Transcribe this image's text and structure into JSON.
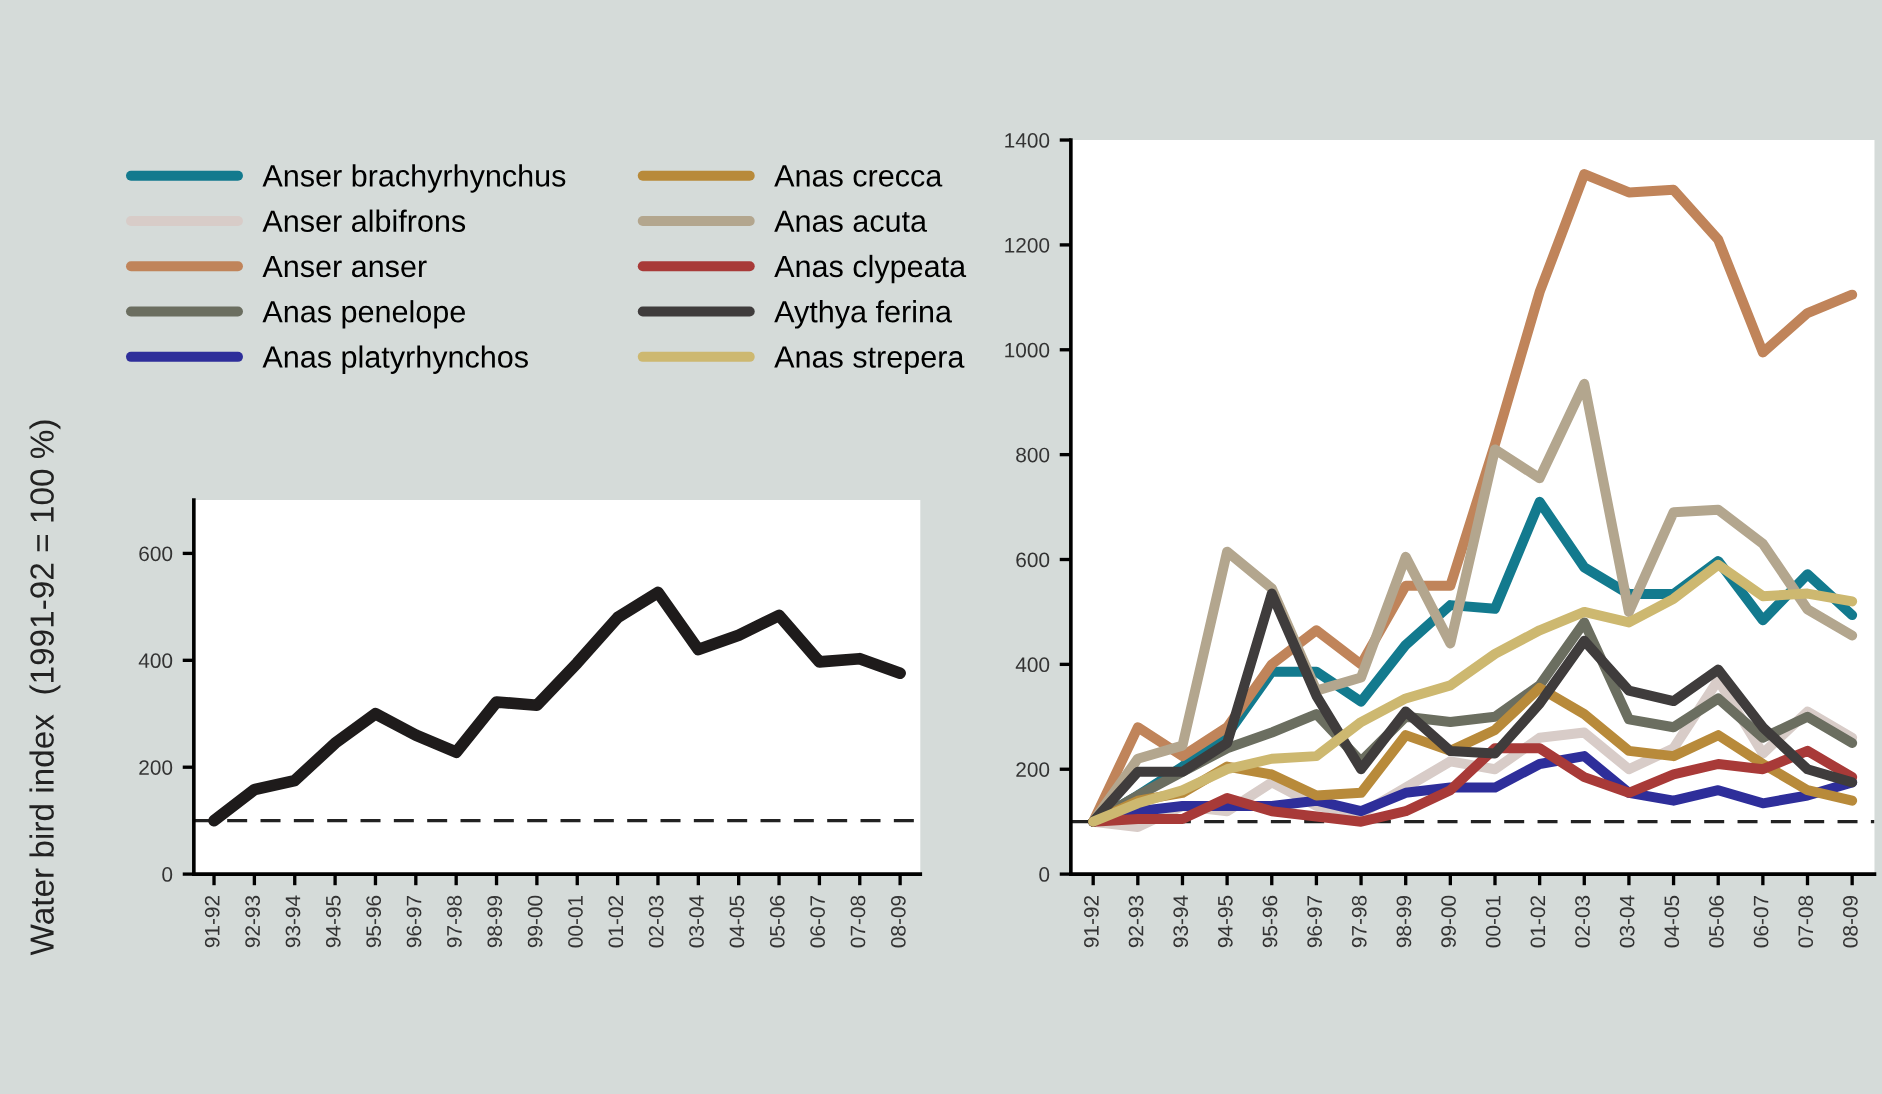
{
  "chart_data": [
    {
      "type": "line",
      "ylabel": "Water bird index  (1991-92 = 100 %)",
      "categories": [
        "91-92",
        "92-93",
        "93-94",
        "94-95",
        "95-96",
        "96-97",
        "97-98",
        "98-99",
        "99-00",
        "00-01",
        "01-02",
        "02-03",
        "03-04",
        "04-05",
        "05-06",
        "06-07",
        "07-08",
        "08-09"
      ],
      "series": [
        {
          "color": "#1e1b1b",
          "values": [
            100,
            158,
            175,
            245,
            300,
            260,
            228,
            322,
            316,
            395,
            480,
            527,
            420,
            447,
            484,
            397,
            403,
            376
          ]
        }
      ],
      "ylim": [
        0,
        700
      ],
      "yticks": [
        0,
        200,
        400,
        600
      ],
      "ref_lines": [
        {
          "axis": "y",
          "value": 100,
          "color": "#222222",
          "line_style": "dashed"
        }
      ],
      "grid": false,
      "legend": false
    },
    {
      "type": "line",
      "categories": [
        "91-92",
        "92-93",
        "93-94",
        "94-95",
        "95-96",
        "96-97",
        "97-98",
        "98-99",
        "99-00",
        "00-01",
        "01-02",
        "02-03",
        "03-04",
        "04-05",
        "05-06",
        "06-07",
        "07-08",
        "08-09"
      ],
      "series": [
        {
          "name": "Anser brachyrhynchus",
          "color": "#137a8e",
          "values": [
            100,
            150,
            205,
            266,
            386,
            386,
            329,
            437,
            513,
            506,
            710,
            585,
            534,
            534,
            597,
            484,
            572,
            494
          ]
        },
        {
          "name": "Anser albifrons",
          "color": "#d8ccc8",
          "values": [
            100,
            90,
            130,
            120,
            175,
            130,
            115,
            165,
            215,
            200,
            260,
            270,
            200,
            240,
            370,
            230,
            310,
            260
          ]
        },
        {
          "name": "Anser anser",
          "color": "#c0845a",
          "values": [
            100,
            280,
            225,
            280,
            400,
            465,
            400,
            550,
            550,
            820,
            1110,
            1335,
            1300,
            1305,
            1210,
            995,
            1070,
            1105
          ]
        },
        {
          "name": "Anas penelope",
          "color": "#6b6e60",
          "values": [
            100,
            150,
            195,
            240,
            270,
            305,
            215,
            300,
            290,
            300,
            360,
            480,
            295,
            280,
            335,
            260,
            300,
            250
          ]
        },
        {
          "name": "Anas platyrhynchos",
          "color": "#2e2e9a",
          "values": [
            100,
            120,
            130,
            130,
            130,
            140,
            120,
            155,
            165,
            165,
            210,
            225,
            155,
            140,
            160,
            135,
            150,
            175
          ]
        },
        {
          "name": "Anas crecca",
          "color": "#b88a3a",
          "values": [
            100,
            140,
            155,
            205,
            190,
            150,
            155,
            265,
            235,
            275,
            355,
            305,
            235,
            225,
            265,
            210,
            160,
            140
          ]
        },
        {
          "name": "Anas acuta",
          "color": "#b3a68e",
          "values": [
            100,
            220,
            245,
            615,
            545,
            350,
            375,
            605,
            440,
            810,
            755,
            935,
            500,
            690,
            695,
            630,
            505,
            455
          ]
        },
        {
          "name": "Anas clypeata",
          "color": "#a83a38",
          "values": [
            100,
            105,
            105,
            145,
            120,
            110,
            100,
            120,
            160,
            240,
            240,
            185,
            155,
            190,
            210,
            200,
            235,
            185
          ]
        },
        {
          "name": "Aythya ferina",
          "color": "#3f3c3c",
          "values": [
            100,
            195,
            195,
            250,
            535,
            340,
            200,
            310,
            235,
            230,
            325,
            445,
            350,
            330,
            390,
            280,
            200,
            175
          ]
        },
        {
          "name": "Anas strepera",
          "color": "#cdb870",
          "values": [
            100,
            135,
            160,
            200,
            220,
            225,
            290,
            335,
            360,
            420,
            465,
            500,
            480,
            525,
            590,
            530,
            535,
            520
          ]
        }
      ],
      "ylim": [
        0,
        1400
      ],
      "yticks": [
        0,
        200,
        400,
        600,
        800,
        1000,
        1200,
        1400
      ],
      "ref_lines": [
        {
          "axis": "y",
          "value": 100,
          "color": "#222222",
          "line_style": "dashed"
        }
      ],
      "grid": false,
      "legend": "left"
    }
  ]
}
